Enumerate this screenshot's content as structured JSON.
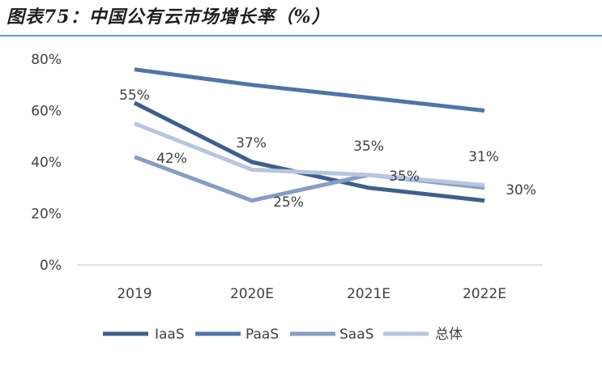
{
  "title": "图表75：中国公有云市场增长率（%）",
  "colors": {
    "IaaS": "#3d5f8c",
    "PaaS": "#4f75a8",
    "SaaS": "#869dc4",
    "total": "#b7c5df",
    "grid": "#d9d9d9",
    "text": "#404040",
    "rule": "#5b9bd5"
  },
  "chart_data": {
    "type": "line",
    "categories": [
      "2019",
      "2020E",
      "2021E",
      "2022E"
    ],
    "series": [
      {
        "name": "IaaS",
        "values": [
          63,
          40,
          30,
          25
        ]
      },
      {
        "name": "PaaS",
        "values": [
          76,
          70,
          65,
          60
        ]
      },
      {
        "name": "SaaS",
        "values": [
          42,
          25,
          35,
          30
        ]
      },
      {
        "name": "总体",
        "values": [
          55,
          37,
          35,
          31
        ]
      }
    ],
    "data_labels": [
      "55%",
      "37%",
      "35%",
      "31%",
      "42%",
      "25%",
      "35%",
      "30%"
    ],
    "yticks": [
      "0%",
      "20%",
      "40%",
      "60%",
      "80%"
    ],
    "ylim": [
      0,
      80
    ],
    "legend_position": "bottom",
    "grid": false
  }
}
